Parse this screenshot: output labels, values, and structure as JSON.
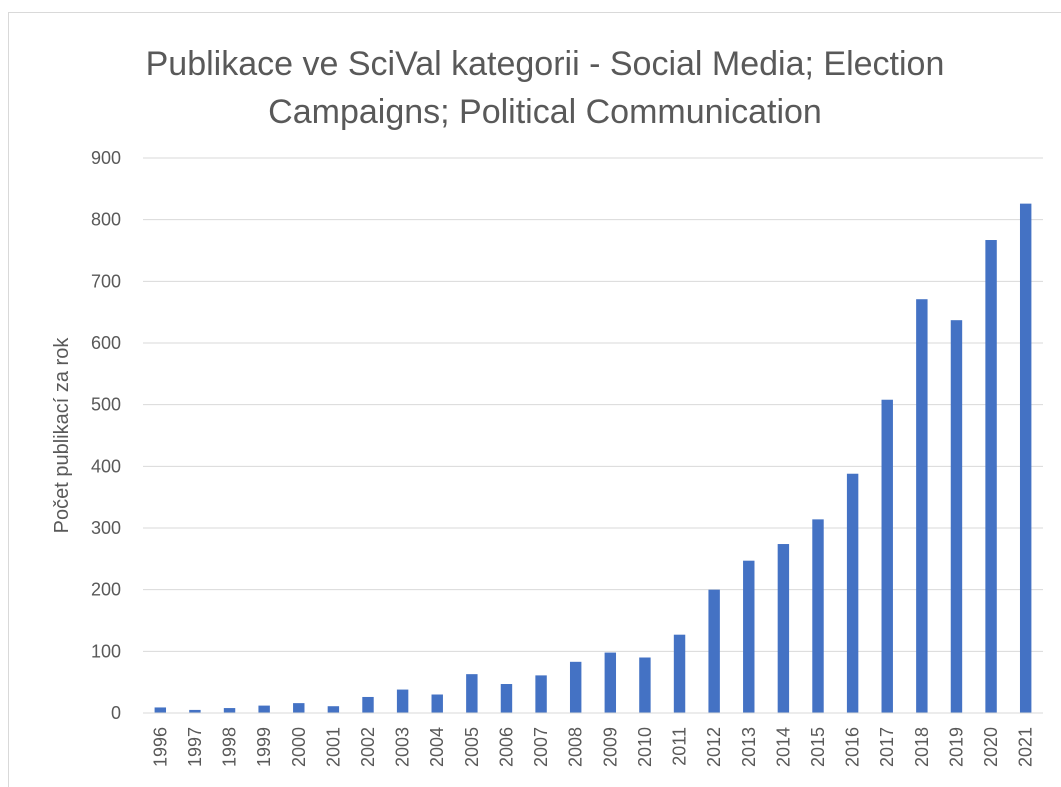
{
  "chart_data": {
    "type": "bar",
    "title_lines": [
      "Publikace ve SciVal kategorii - Social Media; Election",
      "Campaigns; Political Communication"
    ],
    "xlabel": "",
    "ylabel": "Počet publikací za rok",
    "ylim": [
      0,
      900
    ],
    "yticks": [
      0,
      100,
      200,
      300,
      400,
      500,
      600,
      700,
      800,
      900
    ],
    "grid": true,
    "legend": "none",
    "bar_color": "#4472C4",
    "categories": [
      "1996",
      "1997",
      "1998",
      "1999",
      "2000",
      "2001",
      "2002",
      "2003",
      "2004",
      "2005",
      "2006",
      "2007",
      "2008",
      "2009",
      "2010",
      "2011",
      "2012",
      "2013",
      "2014",
      "2015",
      "2016",
      "2017",
      "2018",
      "2019",
      "2020",
      "2021"
    ],
    "values": [
      9,
      5,
      8,
      12,
      16,
      11,
      26,
      38,
      30,
      63,
      47,
      61,
      83,
      98,
      90,
      127,
      200,
      247,
      274,
      314,
      388,
      508,
      671,
      637,
      767,
      826
    ]
  }
}
